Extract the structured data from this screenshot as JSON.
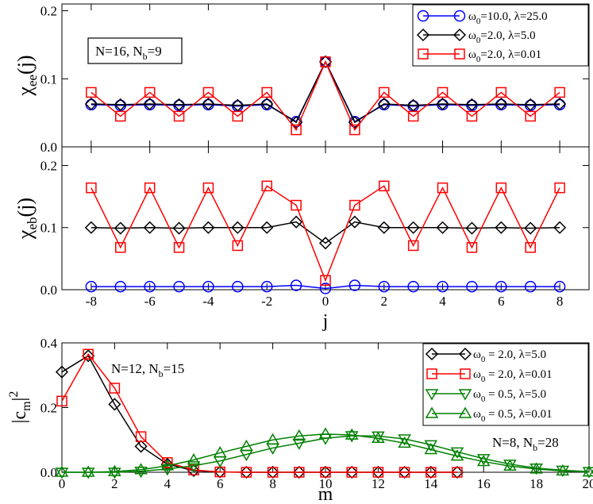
{
  "chart_data": [
    {
      "type": "line",
      "panel": "top",
      "ylabel": "χee(j)",
      "ylabel_main": "χ",
      "ylabel_sub": "ee",
      "ylabel_tail": "(j)",
      "x": [
        -8,
        -7,
        -6,
        -5,
        -4,
        -3,
        -2,
        -1,
        0,
        1,
        2,
        3,
        4,
        5,
        6,
        7,
        8
      ],
      "xlim": [
        -9,
        9
      ],
      "ylim": [
        0,
        0.21
      ],
      "yticks": [
        "0.0",
        "0.1",
        "0.2"
      ],
      "ytick_values": [
        0,
        0.1,
        0.2
      ],
      "annotation": {
        "main": "N=16, N",
        "sub": "b",
        "tail": "=9"
      },
      "series": [
        {
          "name": "ω0=10.0, λ=25.0",
          "color": "#0000ff",
          "marker": "circle",
          "values": [
            0.062,
            0.061,
            0.062,
            0.061,
            0.062,
            0.06,
            0.062,
            0.037,
            0.125,
            0.037,
            0.062,
            0.06,
            0.062,
            0.061,
            0.062,
            0.061,
            0.062
          ]
        },
        {
          "name": "ω0=2.0, λ=5.0",
          "color": "#000000",
          "marker": "diamond",
          "values": [
            0.063,
            0.062,
            0.063,
            0.062,
            0.063,
            0.061,
            0.063,
            0.036,
            0.125,
            0.036,
            0.063,
            0.061,
            0.063,
            0.062,
            0.063,
            0.062,
            0.063
          ]
        },
        {
          "name": "ω0=2.0, λ=0.01",
          "color": "#ff0000",
          "marker": "square",
          "values": [
            0.08,
            0.045,
            0.08,
            0.045,
            0.08,
            0.045,
            0.08,
            0.025,
            0.125,
            0.025,
            0.08,
            0.045,
            0.08,
            0.045,
            0.08,
            0.045,
            0.08
          ]
        }
      ],
      "legend": [
        {
          "main": "ω",
          "sub": "0",
          "tail": "=10.0,  λ=25.0"
        },
        {
          "main": "ω",
          "sub": "0",
          "tail": "=2.0,  λ=5.0"
        },
        {
          "main": "ω",
          "sub": "0",
          "tail": "=2.0,  λ=0.01"
        }
      ]
    },
    {
      "type": "line",
      "panel": "middle",
      "ylabel": "χeb(j)",
      "ylabel_main": "χ",
      "ylabel_sub": "eb",
      "ylabel_tail": "(j)",
      "xlabel": "j",
      "x": [
        -8,
        -7,
        -6,
        -5,
        -4,
        -3,
        -2,
        -1,
        0,
        1,
        2,
        3,
        4,
        5,
        6,
        7,
        8
      ],
      "xlim": [
        -9,
        9
      ],
      "xticks": [
        "-8",
        "-6",
        "-4",
        "-2",
        "0",
        "2",
        "4",
        "6",
        "8"
      ],
      "xtick_values": [
        -8,
        -6,
        -4,
        -2,
        0,
        2,
        4,
        6,
        8
      ],
      "ylim": [
        0,
        0.23
      ],
      "yticks": [
        "0.0",
        "0.1",
        "0.2"
      ],
      "ytick_values": [
        0,
        0.1,
        0.2
      ],
      "series": [
        {
          "name": "ω0=10.0, λ=25.0",
          "color": "#0000ff",
          "marker": "circle",
          "values": [
            0.005,
            0.005,
            0.005,
            0.005,
            0.005,
            0.005,
            0.005,
            0.007,
            0.002,
            0.007,
            0.005,
            0.005,
            0.005,
            0.005,
            0.005,
            0.005,
            0.005
          ]
        },
        {
          "name": "ω0=2.0, λ=5.0",
          "color": "#000000",
          "marker": "diamond",
          "values": [
            0.1,
            0.099,
            0.1,
            0.099,
            0.1,
            0.1,
            0.1,
            0.109,
            0.075,
            0.109,
            0.1,
            0.1,
            0.1,
            0.099,
            0.1,
            0.099,
            0.1
          ]
        },
        {
          "name": "ω0=2.0, λ=0.01",
          "color": "#ff0000",
          "marker": "square",
          "values": [
            0.164,
            0.068,
            0.164,
            0.068,
            0.164,
            0.071,
            0.167,
            0.136,
            0.015,
            0.136,
            0.167,
            0.071,
            0.164,
            0.068,
            0.164,
            0.068,
            0.164
          ]
        }
      ]
    },
    {
      "type": "line",
      "panel": "bottom",
      "xlabel": "m",
      "ylabel_main": "|c",
      "ylabel_sub": "m",
      "ylabel_tail": "|",
      "ylabel_sup": "2",
      "xlim": [
        0,
        20
      ],
      "xticks": [
        "0",
        "2",
        "4",
        "6",
        "8",
        "10",
        "12",
        "14",
        "16",
        "18",
        "20"
      ],
      "xtick_values": [
        0,
        2,
        4,
        6,
        8,
        10,
        12,
        14,
        16,
        18,
        20
      ],
      "ylim": [
        0,
        0.4
      ],
      "yticks": [
        "0.0",
        "0.2",
        "0.4"
      ],
      "ytick_values": [
        0,
        0.2,
        0.4
      ],
      "annotations": [
        {
          "main": "N=12, N",
          "sub": "b",
          "tail": "=15"
        },
        {
          "main": "N=8, N",
          "sub": "b",
          "tail": "=28"
        }
      ],
      "series": [
        {
          "name": "ω0 = 2.0, λ=5.0",
          "color": "#000000",
          "marker": "diamond",
          "x": [
            0,
            1,
            2,
            3,
            4,
            5,
            6,
            7,
            8,
            9,
            10,
            11,
            12,
            13,
            14,
            15
          ],
          "values": [
            0.31,
            0.36,
            0.21,
            0.08,
            0.025,
            0.005,
            0.001,
            0,
            0,
            0,
            0,
            0,
            0,
            0,
            0,
            0
          ]
        },
        {
          "name": "ω0 = 2.0, λ=0.01",
          "color": "#ff0000",
          "marker": "square",
          "x": [
            0,
            1,
            2,
            3,
            4,
            5,
            6,
            7,
            8,
            9,
            10,
            11,
            12,
            13,
            14,
            15
          ],
          "values": [
            0.22,
            0.365,
            0.26,
            0.11,
            0.03,
            0.007,
            0.001,
            0,
            0,
            0,
            0,
            0,
            0,
            0,
            0,
            0
          ]
        },
        {
          "name": "ω0 = 0.5, λ=5.0",
          "color": "#008000",
          "marker": "triangle-down",
          "x": [
            0,
            1,
            2,
            3,
            4,
            5,
            6,
            7,
            8,
            9,
            10,
            11,
            12,
            13,
            14,
            15,
            16,
            17,
            18,
            19,
            20
          ],
          "values": [
            0,
            0,
            0,
            0.003,
            0.01,
            0.02,
            0.035,
            0.055,
            0.075,
            0.09,
            0.105,
            0.113,
            0.112,
            0.103,
            0.085,
            0.063,
            0.042,
            0.025,
            0.013,
            0.006,
            0.002
          ]
        },
        {
          "name": "ω0 = 0.5, λ=0.01",
          "color": "#008000",
          "marker": "triangle-up",
          "x": [
            0,
            1,
            2,
            3,
            4,
            5,
            6,
            7,
            8,
            9,
            10,
            11,
            12,
            13,
            14,
            15,
            16,
            17,
            18,
            19,
            20
          ],
          "values": [
            0,
            0,
            0.002,
            0.008,
            0.02,
            0.038,
            0.06,
            0.08,
            0.1,
            0.112,
            0.118,
            0.115,
            0.105,
            0.09,
            0.07,
            0.05,
            0.033,
            0.019,
            0.01,
            0.004,
            0.001
          ]
        }
      ],
      "legend": [
        {
          "main": "ω",
          "sub": "0",
          "tail": " = 2.0,  λ=5.0"
        },
        {
          "main": "ω",
          "sub": "0",
          "tail": " = 2.0,  λ=0.01"
        },
        {
          "main": "ω",
          "sub": "0",
          "tail": " = 0.5,  λ=5.0"
        },
        {
          "main": "ω",
          "sub": "0",
          "tail": " = 0.5,  λ=0.01"
        }
      ]
    }
  ]
}
